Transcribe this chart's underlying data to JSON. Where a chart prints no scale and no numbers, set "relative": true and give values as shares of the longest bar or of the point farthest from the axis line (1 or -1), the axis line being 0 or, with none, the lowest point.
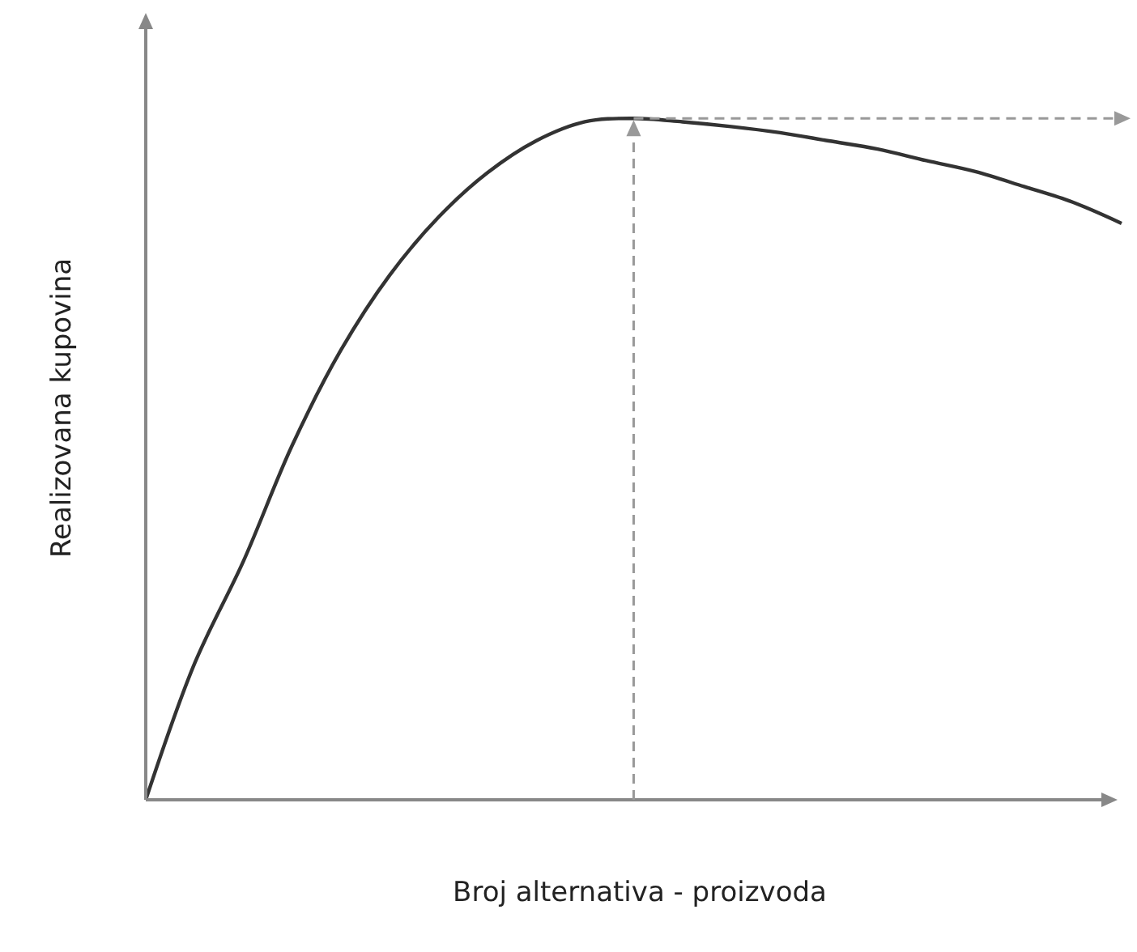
{
  "chart_data": {
    "type": "line",
    "relative": true,
    "xlabel": "Broj alternativa - proizvoda",
    "ylabel": "Realizovana kupovina",
    "categories": [
      null,
      null,
      null,
      null,
      null,
      null,
      null,
      null,
      null,
      null,
      null,
      null,
      null,
      null,
      null,
      null,
      null,
      null,
      null,
      null,
      null
    ],
    "series": [
      {
        "color": "#333333",
        "values": [
          0,
          0.2,
          0.35,
          0.52,
          0.66,
          0.77,
          0.855,
          0.92,
          0.967,
          0.995,
          1,
          0.995,
          0.988,
          0.979,
          0.967,
          0.955,
          0.938,
          0.922,
          0.9,
          0.877,
          0.846
        ]
      }
    ],
    "grid": false,
    "legend": false,
    "marker": "none",
    "line_style": "solid",
    "tick_labels": false
  }
}
